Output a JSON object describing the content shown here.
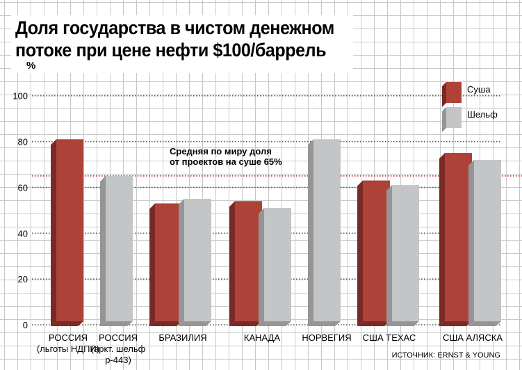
{
  "chart_data": {
    "type": "bar",
    "title": "Доля государства в чистом денежном потоке при цене нефти $100/баррель",
    "ylabel": "%",
    "ylim": [
      0,
      100
    ],
    "yticks": [
      0,
      20,
      40,
      60,
      80,
      100
    ],
    "categories": [
      [
        "РОССИЯ",
        "(льготы НДПИ)"
      ],
      [
        "РОССИЯ",
        "(аркт. шельф",
        "р-443)"
      ],
      [
        "БРАЗИЛИЯ"
      ],
      [
        "КАНАДА"
      ],
      [
        "НОРВЕГИЯ"
      ],
      [
        "США ТЕХАС"
      ],
      [
        "США АЛЯСКА"
      ]
    ],
    "series": [
      {
        "name": "Суша",
        "color": "#ae4238",
        "values": [
          81,
          null,
          53,
          54,
          null,
          63,
          75
        ]
      },
      {
        "name": "Шельф",
        "color": "#c4c5c7",
        "values": [
          null,
          65,
          55,
          51,
          81,
          61,
          72
        ]
      }
    ],
    "reference_line": {
      "value": 65,
      "color": "#b0282c",
      "label": [
        "Средняя по миру доля",
        "от проектов на суше 65%"
      ]
    },
    "legend": "top-right",
    "source": "ИСТОЧНИК: ERNST & YOUNG"
  }
}
